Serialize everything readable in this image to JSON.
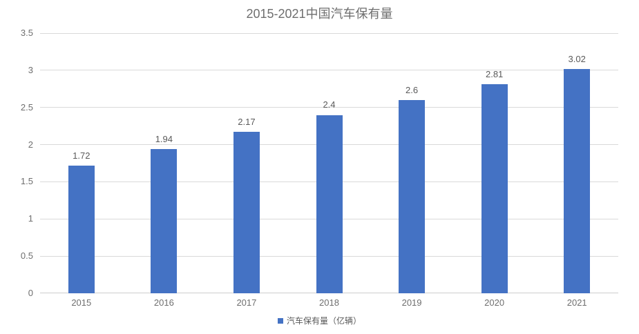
{
  "chart_data": {
    "type": "bar",
    "title": "2015-2021中国汽车保有量",
    "categories": [
      "2015",
      "2016",
      "2017",
      "2018",
      "2019",
      "2020",
      "2021"
    ],
    "values": [
      1.72,
      1.94,
      2.17,
      2.4,
      2.6,
      2.81,
      3.02
    ],
    "data_labels": [
      "1.72",
      "1.94",
      "2.17",
      "2.4",
      "2.6",
      "2.81",
      "3.02"
    ],
    "series_name": "汽车保有量（亿辆）",
    "legend": "汽车保有量（亿辆）",
    "legend_position": "bottom-center",
    "xlabel": "",
    "ylabel": "",
    "ylim": [
      0,
      3.5
    ],
    "ytick_step": 0.5,
    "ytick_labels": [
      "0",
      "0.5",
      "1",
      "1.5",
      "2",
      "2.5",
      "3",
      "3.5"
    ],
    "grid": true,
    "colors": {
      "bar": "#4472c4",
      "gridline": "#d9d9d9",
      "axis_line": "#cdcdcd",
      "title_text": "#6e6e6e",
      "tick_text": "#6e6e6e",
      "data_label_text": "#595959",
      "legend_text": "#595959"
    }
  }
}
